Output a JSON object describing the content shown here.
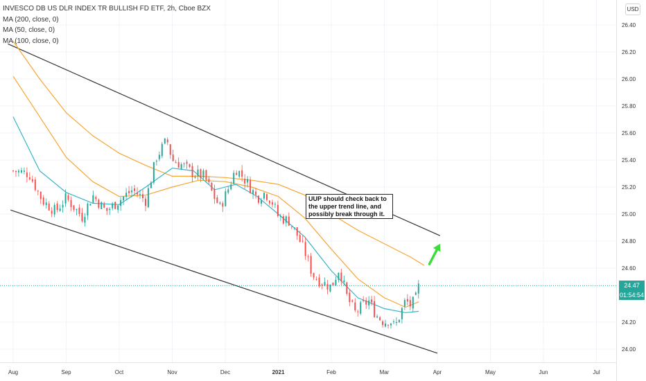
{
  "legend": {
    "title": "INVESCO DB US DLR INDEX TR BULLISH FD ETF, 2h, Cboe BZX",
    "ma200": "MA (200, close, 0)",
    "ma50": "MA (50, close, 0)",
    "ma100": "MA (100, close, 0)"
  },
  "currency": "USD",
  "price_label": "24.47",
  "countdown_label": "01:54:54",
  "annotation_text": "UUP should check back to the upper trend line, and possibly break through it.",
  "colors": {
    "up": "#26a69a",
    "down": "#ef5350",
    "ma_orange": "#f7a531",
    "ma_teal": "#33b5c9",
    "trend": "#333333",
    "arrow": "#3bdc3b",
    "price_line": "#26a69a"
  },
  "chart_data": {
    "type": "candlestick",
    "title": "INVESCO DB US DLR INDEX TR BULLISH FD ETF, 2h, Cboe BZX",
    "y_axis": {
      "ticks": [
        "26.40",
        "26.20",
        "26.00",
        "25.80",
        "25.60",
        "25.40",
        "25.20",
        "25.00",
        "24.80",
        "24.60",
        "24.20",
        "24.00"
      ],
      "tick_values": [
        26.4,
        26.2,
        26.0,
        25.8,
        25.6,
        25.4,
        25.2,
        25.0,
        24.8,
        24.6,
        24.2,
        24.0
      ],
      "range": [
        23.84,
        26.58
      ]
    },
    "x_axis": {
      "ticks": [
        "Aug",
        "Sep",
        "Oct",
        "Nov",
        "Dec",
        "2021",
        "Feb",
        "Mar",
        "Apr",
        "May",
        "Jun",
        "Jul"
      ]
    },
    "last_price": 24.47,
    "close_path": [
      [
        0,
        25.32
      ],
      [
        0.3,
        25.3
      ],
      [
        0.55,
        25.1
      ],
      [
        0.8,
        25.02
      ],
      [
        1.0,
        25.12
      ],
      [
        1.3,
        24.98
      ],
      [
        1.5,
        25.14
      ],
      [
        1.75,
        25.02
      ],
      [
        2.0,
        25.1
      ],
      [
        2.25,
        25.18
      ],
      [
        2.5,
        25.1
      ],
      [
        2.7,
        25.42
      ],
      [
        2.9,
        25.55
      ],
      [
        3.0,
        25.4
      ],
      [
        3.2,
        25.36
      ],
      [
        3.4,
        25.3
      ],
      [
        3.6,
        25.28
      ],
      [
        3.8,
        25.12
      ],
      [
        3.9,
        25.05
      ],
      [
        4.05,
        25.18
      ],
      [
        4.2,
        25.34
      ],
      [
        4.4,
        25.24
      ],
      [
        4.6,
        25.12
      ],
      [
        4.75,
        25.16
      ],
      [
        4.9,
        25.08
      ],
      [
        5.0,
        24.98
      ],
      [
        5.2,
        24.95
      ],
      [
        5.35,
        24.85
      ],
      [
        5.5,
        24.72
      ],
      [
        5.65,
        24.55
      ],
      [
        5.8,
        24.5
      ],
      [
        6.0,
        24.46
      ],
      [
        6.15,
        24.6
      ],
      [
        6.3,
        24.38
      ],
      [
        6.45,
        24.27
      ],
      [
        6.7,
        24.36
      ],
      [
        6.85,
        24.25
      ],
      [
        7.0,
        24.2
      ],
      [
        7.1,
        24.22
      ],
      [
        7.2,
        24.16
      ],
      [
        7.3,
        24.26
      ],
      [
        7.4,
        24.36
      ],
      [
        7.5,
        24.32
      ],
      [
        7.6,
        24.38
      ],
      [
        7.65,
        24.47
      ]
    ],
    "series": [
      {
        "name": "MA (200, close, 0)",
        "color": "#f7a531",
        "points": [
          [
            0,
            26.28
          ],
          [
            0.5,
            26.0
          ],
          [
            1.0,
            25.75
          ],
          [
            1.5,
            25.58
          ],
          [
            2.0,
            25.45
          ],
          [
            2.5,
            25.36
          ],
          [
            3.0,
            25.28
          ],
          [
            3.5,
            25.28
          ],
          [
            4.0,
            25.27
          ],
          [
            4.5,
            25.25
          ],
          [
            5.0,
            25.22
          ],
          [
            5.5,
            25.14
          ],
          [
            6.0,
            25.0
          ],
          [
            6.5,
            24.88
          ],
          [
            7.0,
            24.78
          ],
          [
            7.5,
            24.68
          ],
          [
            7.75,
            24.62
          ]
        ]
      },
      {
        "name": "MA (100, close, 0)",
        "color": "#f7a531",
        "points": [
          [
            0,
            26.02
          ],
          [
            0.5,
            25.72
          ],
          [
            1.0,
            25.42
          ],
          [
            1.5,
            25.24
          ],
          [
            2.0,
            25.13
          ],
          [
            2.5,
            25.14
          ],
          [
            3.0,
            25.2
          ],
          [
            3.5,
            25.25
          ],
          [
            4.0,
            25.24
          ],
          [
            4.5,
            25.2
          ],
          [
            5.0,
            25.13
          ],
          [
            5.5,
            24.97
          ],
          [
            6.0,
            24.74
          ],
          [
            6.5,
            24.52
          ],
          [
            7.0,
            24.38
          ],
          [
            7.4,
            24.31
          ],
          [
            7.65,
            24.35
          ]
        ]
      },
      {
        "name": "MA (50, close, 0)",
        "color": "#33b5c9",
        "points": [
          [
            0,
            25.72
          ],
          [
            0.5,
            25.32
          ],
          [
            1.0,
            25.16
          ],
          [
            1.5,
            25.08
          ],
          [
            2.0,
            25.07
          ],
          [
            2.5,
            25.2
          ],
          [
            3.0,
            25.34
          ],
          [
            3.4,
            25.32
          ],
          [
            3.8,
            25.18
          ],
          [
            4.2,
            25.22
          ],
          [
            4.6,
            25.13
          ],
          [
            5.0,
            25.0
          ],
          [
            5.5,
            24.83
          ],
          [
            6.0,
            24.58
          ],
          [
            6.5,
            24.38
          ],
          [
            7.0,
            24.3
          ],
          [
            7.4,
            24.27
          ],
          [
            7.65,
            24.28
          ]
        ]
      }
    ],
    "trend_lines": [
      {
        "name": "upper",
        "from": [
          -0.1,
          26.26
        ],
        "to": [
          8.05,
          24.84
        ]
      },
      {
        "name": "lower",
        "from": [
          -0.05,
          25.03
        ],
        "to": [
          8.0,
          23.97
        ]
      }
    ],
    "arrow": {
      "from": [
        7.85,
        24.63
      ],
      "to": [
        8.05,
        24.78
      ]
    },
    "grid": true,
    "legend_position": "top-left"
  }
}
